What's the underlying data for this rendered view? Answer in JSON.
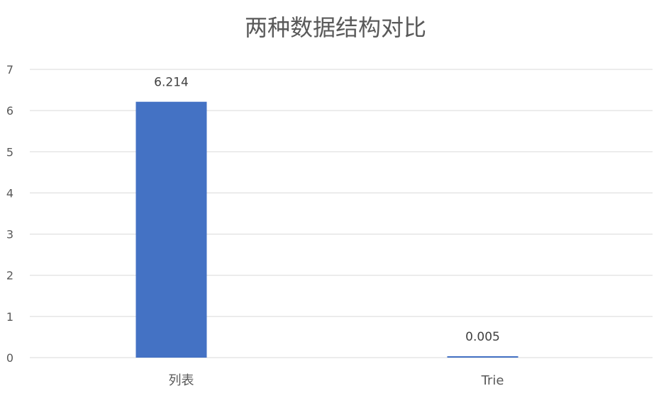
{
  "chart_data": {
    "type": "bar",
    "title": "两种数据结构对比",
    "categories": [
      "列表",
      "Trie"
    ],
    "values": [
      6.214,
      0.005
    ],
    "data_labels": [
      "6.214",
      "0.005"
    ],
    "ylim": [
      0,
      7
    ],
    "yticks": [
      0,
      1,
      2,
      3,
      4,
      5,
      6,
      7
    ],
    "xlabel": "",
    "ylabel": "",
    "grid": true,
    "legend": "none",
    "bar_color": "#4472C4",
    "grid_color": "#d9d9d9",
    "text_color": "#595959"
  }
}
